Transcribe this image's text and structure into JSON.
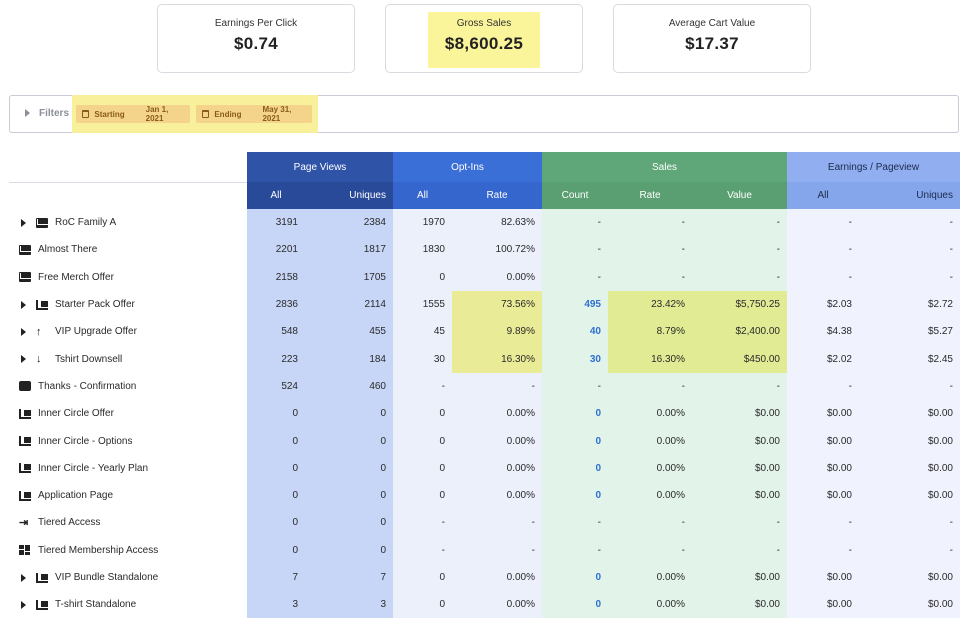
{
  "kpis": [
    {
      "label": "Earnings Per Click",
      "value": "$0.74"
    },
    {
      "label": "Gross Sales",
      "value": "$8,600.25"
    },
    {
      "label": "Average Cart Value",
      "value": "$17.37"
    }
  ],
  "filters": {
    "title": "Filters",
    "starting_label": "Starting",
    "starting_value": "Jan 1, 2021",
    "ending_label": "Ending",
    "ending_value": "May 31, 2021"
  },
  "table": {
    "groups": [
      "Page Views",
      "Opt-Ins",
      "Sales",
      "Earnings / Pageview"
    ],
    "subheaders": [
      "All",
      "Uniques",
      "All",
      "Rate",
      "Count",
      "Rate",
      "Value",
      "All",
      "Uniques"
    ],
    "rows": [
      {
        "name": "RoC Family A",
        "icon": "envelope-icon",
        "expand": true,
        "v": [
          "3191",
          "2384",
          "1970",
          "82.63%",
          "-",
          "-",
          "-",
          "-",
          "-"
        ]
      },
      {
        "name": "Almost There",
        "icon": "envelope-icon",
        "expand": false,
        "v": [
          "2201",
          "1817",
          "1830",
          "100.72%",
          "-",
          "-",
          "-",
          "-",
          "-"
        ]
      },
      {
        "name": "Free Merch Offer",
        "icon": "envelope-icon",
        "expand": false,
        "v": [
          "2158",
          "1705",
          "0",
          "0.00%",
          "-",
          "-",
          "-",
          "-",
          "-"
        ]
      },
      {
        "name": "Starter Pack Offer",
        "icon": "cart-icon",
        "expand": true,
        "v": [
          "2836",
          "2114",
          "1555",
          "73.56%",
          "495",
          "23.42%",
          "$5,750.25",
          "$2.03",
          "$2.72"
        ]
      },
      {
        "name": "VIP Upgrade Offer",
        "icon": "arrow-up-icon",
        "expand": true,
        "v": [
          "548",
          "455",
          "45",
          "9.89%",
          "40",
          "8.79%",
          "$2,400.00",
          "$4.38",
          "$5.27"
        ]
      },
      {
        "name": "Tshirt Downsell",
        "icon": "arrow-down-icon",
        "expand": true,
        "v": [
          "223",
          "184",
          "30",
          "16.30%",
          "30",
          "16.30%",
          "$450.00",
          "$2.02",
          "$2.45"
        ]
      },
      {
        "name": "Thanks - Confirmation",
        "icon": "checkbox-icon",
        "expand": false,
        "v": [
          "524",
          "460",
          "-",
          "-",
          "-",
          "-",
          "-",
          "-",
          "-"
        ]
      },
      {
        "name": "Inner Circle Offer",
        "icon": "cart-icon",
        "expand": false,
        "v": [
          "0",
          "0",
          "0",
          "0.00%",
          "0",
          "0.00%",
          "$0.00",
          "$0.00",
          "$0.00"
        ]
      },
      {
        "name": "Inner Circle - Options",
        "icon": "cart-icon",
        "expand": false,
        "v": [
          "0",
          "0",
          "0",
          "0.00%",
          "0",
          "0.00%",
          "$0.00",
          "$0.00",
          "$0.00"
        ]
      },
      {
        "name": "Inner Circle - Yearly Plan",
        "icon": "cart-icon",
        "expand": false,
        "v": [
          "0",
          "0",
          "0",
          "0.00%",
          "0",
          "0.00%",
          "$0.00",
          "$0.00",
          "$0.00"
        ]
      },
      {
        "name": "Application Page",
        "icon": "cart-icon",
        "expand": false,
        "v": [
          "0",
          "0",
          "0",
          "0.00%",
          "0",
          "0.00%",
          "$0.00",
          "$0.00",
          "$0.00"
        ]
      },
      {
        "name": "Tiered Access",
        "icon": "sign-in-icon",
        "expand": false,
        "v": [
          "0",
          "0",
          "-",
          "-",
          "-",
          "-",
          "-",
          "-",
          "-"
        ]
      },
      {
        "name": "Tiered Membership Access",
        "icon": "dashboard-icon",
        "expand": false,
        "v": [
          "0",
          "0",
          "-",
          "-",
          "-",
          "-",
          "-",
          "-",
          "-"
        ]
      },
      {
        "name": "VIP Bundle Standalone",
        "icon": "cart-icon",
        "expand": true,
        "v": [
          "7",
          "7",
          "0",
          "0.00%",
          "0",
          "0.00%",
          "$0.00",
          "$0.00",
          "$0.00"
        ]
      },
      {
        "name": "T-shirt Standalone",
        "icon": "cart-icon",
        "expand": true,
        "v": [
          "3",
          "3",
          "0",
          "0.00%",
          "0",
          "0.00%",
          "$0.00",
          "$0.00",
          "$0.00"
        ]
      }
    ]
  }
}
